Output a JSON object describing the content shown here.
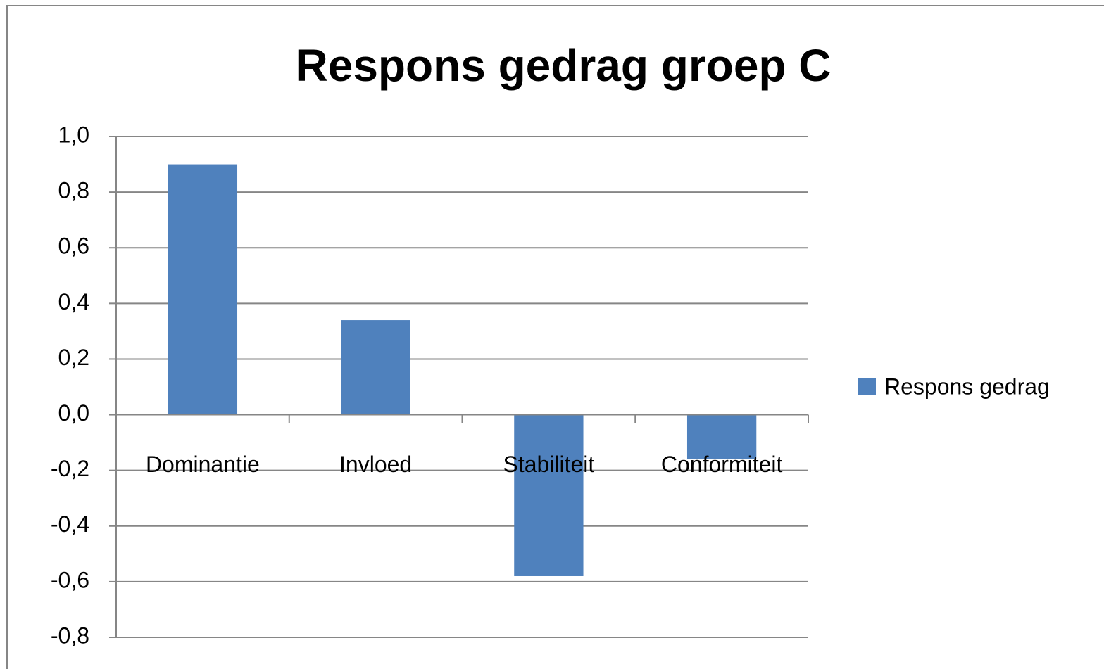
{
  "chart_data": {
    "type": "bar",
    "title": "Respons gedrag groep C",
    "categories": [
      "Dominantie",
      "Invloed",
      "Stabiliteit",
      "Conformiteit"
    ],
    "series": [
      {
        "name": "Respons gedrag",
        "color": "#4f81bd",
        "values": [
          0.9,
          0.34,
          -0.58,
          -0.16
        ]
      }
    ],
    "ylim": [
      -0.8,
      1.0
    ],
    "yticks": [
      {
        "value": -0.8,
        "label": "-0,8"
      },
      {
        "value": -0.6,
        "label": "-0,6"
      },
      {
        "value": -0.4,
        "label": "-0,4"
      },
      {
        "value": -0.2,
        "label": "-0,2"
      },
      {
        "value": 0,
        "label": "0,0"
      },
      {
        "value": 0.2,
        "label": "0,2"
      },
      {
        "value": 0.4,
        "label": "0,4"
      },
      {
        "value": 0.6,
        "label": "0,6"
      },
      {
        "value": 0.8,
        "label": "0,8"
      },
      {
        "value": 1.0,
        "label": "1,0"
      }
    ],
    "grid": true,
    "legend": "right"
  }
}
